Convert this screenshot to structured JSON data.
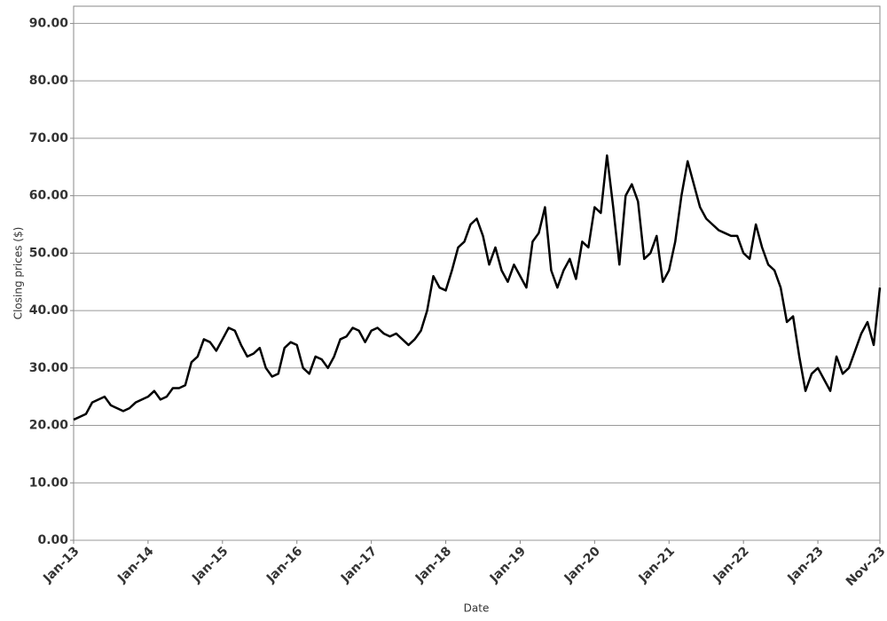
{
  "chart_data": {
    "type": "line",
    "x_label": "Date",
    "y_label": "Closing prices ($)",
    "color": "#000000",
    "grid": true,
    "x": [
      "Jan-13",
      "Feb-13",
      "Mar-13",
      "Apr-13",
      "May-13",
      "Jun-13",
      "Jul-13",
      "Aug-13",
      "Sep-13",
      "Oct-13",
      "Nov-13",
      "Dec-13",
      "Jan-14",
      "Feb-14",
      "Mar-14",
      "Apr-14",
      "May-14",
      "Jun-14",
      "Jul-14",
      "Aug-14",
      "Sep-14",
      "Oct-14",
      "Nov-14",
      "Dec-14",
      "Jan-15",
      "Feb-15",
      "Mar-15",
      "Apr-15",
      "May-15",
      "Jun-15",
      "Jul-15",
      "Aug-15",
      "Sep-15",
      "Oct-15",
      "Nov-15",
      "Dec-15",
      "Jan-16",
      "Feb-16",
      "Mar-16",
      "Apr-16",
      "May-16",
      "Jun-16",
      "Jul-16",
      "Aug-16",
      "Sep-16",
      "Oct-16",
      "Nov-16",
      "Dec-16",
      "Jan-17",
      "Feb-17",
      "Mar-17",
      "Apr-17",
      "May-17",
      "Jun-17",
      "Jul-17",
      "Aug-17",
      "Sep-17",
      "Oct-17",
      "Nov-17",
      "Dec-17",
      "Jan-18",
      "Feb-18",
      "Mar-18",
      "Apr-18",
      "May-18",
      "Jun-18",
      "Jul-18",
      "Aug-18",
      "Sep-18",
      "Oct-18",
      "Nov-18",
      "Dec-18",
      "Jan-19",
      "Feb-19",
      "Mar-19",
      "Apr-19",
      "May-19",
      "Jun-19",
      "Jul-19",
      "Aug-19",
      "Sep-19",
      "Oct-19",
      "Nov-19",
      "Dec-19",
      "Jan-20",
      "Feb-20",
      "Mar-20",
      "Apr-20",
      "May-20",
      "Jun-20",
      "Jul-20",
      "Aug-20",
      "Sep-20",
      "Oct-20",
      "Nov-20",
      "Dec-20",
      "Jan-21",
      "Feb-21",
      "Mar-21",
      "Apr-21",
      "May-21",
      "Jun-21",
      "Jul-21",
      "Aug-21",
      "Sep-21",
      "Oct-21",
      "Nov-21",
      "Dec-21",
      "Jan-22",
      "Feb-22",
      "Mar-22",
      "Apr-22",
      "May-22",
      "Jun-22",
      "Jul-22",
      "Aug-22",
      "Sep-22",
      "Oct-22",
      "Nov-22",
      "Dec-22",
      "Jan-23",
      "Feb-23",
      "Mar-23",
      "Apr-23",
      "May-23",
      "Jun-23",
      "Jul-23",
      "Aug-23",
      "Sep-23",
      "Oct-23",
      "Nov-23"
    ],
    "values": [
      21,
      21.5,
      22,
      24,
      24.5,
      25,
      23.5,
      23,
      22.5,
      23,
      24,
      24.5,
      25,
      26,
      24.5,
      25,
      26.5,
      26.5,
      27,
      31,
      32,
      35,
      34.5,
      33,
      35,
      37,
      36.5,
      34,
      32,
      32.5,
      33.5,
      30,
      28.5,
      29,
      33.5,
      34.5,
      34,
      30,
      29,
      32,
      31.5,
      30,
      32,
      35,
      35.5,
      37,
      36.5,
      34.5,
      36.5,
      37,
      36,
      35.5,
      36,
      35,
      34,
      35,
      36.5,
      40,
      46,
      44,
      43.5,
      47,
      51,
      52,
      55,
      56,
      53,
      48,
      51,
      47,
      45,
      48,
      46,
      44,
      52,
      53.5,
      58,
      47,
      44,
      47,
      49,
      45.5,
      52,
      51,
      58,
      57,
      67,
      58,
      48,
      60,
      62,
      59,
      49,
      50,
      53,
      45,
      47,
      52,
      60,
      66,
      62,
      58,
      56,
      55,
      54,
      53.5,
      53,
      53,
      50,
      49,
      55,
      51,
      48,
      47,
      44,
      38,
      39,
      32,
      26,
      29,
      30,
      28,
      26,
      32,
      29,
      30,
      33,
      36,
      38,
      34,
      44
    ],
    "xticks": [
      "Jan-13",
      "Jan-14",
      "Jan-15",
      "Jan-16",
      "Jan-17",
      "Jan-18",
      "Jan-19",
      "Jan-20",
      "Jan-21",
      "Jan-22",
      "Jan-23",
      "Nov-23"
    ],
    "ylim": [
      0,
      93
    ],
    "yticks": [
      {
        "value": 0,
        "label": "0.00"
      },
      {
        "value": 10,
        "label": "10.00"
      },
      {
        "value": 20,
        "label": "20.00"
      },
      {
        "value": 30,
        "label": "30.00"
      },
      {
        "value": 40,
        "label": "40.00"
      },
      {
        "value": 50,
        "label": "50.00"
      },
      {
        "value": 60,
        "label": "60.00"
      },
      {
        "value": 70,
        "label": "70.00"
      },
      {
        "value": 80,
        "label": "80.00"
      },
      {
        "value": 90,
        "label": "90.00"
      }
    ]
  }
}
